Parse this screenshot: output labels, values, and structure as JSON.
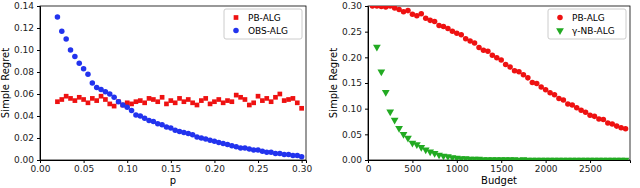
{
  "chart_data": [
    {
      "type": "scatter",
      "x_label": "p",
      "y_label": "Simple Regret",
      "legend": "upper right",
      "xlim": [
        0,
        0.305
      ],
      "ylim": [
        0,
        0.14
      ],
      "xticks": [
        {
          "value": 0,
          "label": "0.00"
        },
        {
          "value": 0.05,
          "label": "0.05"
        },
        {
          "value": 0.1,
          "label": "0.10"
        },
        {
          "value": 0.15,
          "label": "0.15"
        },
        {
          "value": 0.2,
          "label": "0.20"
        },
        {
          "value": 0.25,
          "label": "0.25"
        },
        {
          "value": 0.3,
          "label": "0.30"
        }
      ],
      "yticks": [
        {
          "value": 0,
          "label": "0.00"
        },
        {
          "value": 0.02,
          "label": "0.02"
        },
        {
          "value": 0.04,
          "label": "0.04"
        },
        {
          "value": 0.06,
          "label": "0.06"
        },
        {
          "value": 0.08,
          "label": "0.08"
        },
        {
          "value": 0.1,
          "label": "0.10"
        },
        {
          "value": 0.12,
          "label": "0.12"
        },
        {
          "value": 0.14,
          "label": "0.14"
        }
      ],
      "series": [
        {
          "name": "PB-ALG",
          "color": "#ee1111",
          "marker": "square",
          "x": [
            0.02,
            0.025,
            0.03,
            0.035,
            0.04,
            0.045,
            0.05,
            0.055,
            0.06,
            0.065,
            0.07,
            0.075,
            0.08,
            0.085,
            0.09,
            0.095,
            0.1,
            0.105,
            0.11,
            0.115,
            0.12,
            0.125,
            0.13,
            0.135,
            0.14,
            0.145,
            0.15,
            0.155,
            0.16,
            0.165,
            0.17,
            0.175,
            0.18,
            0.185,
            0.19,
            0.195,
            0.2,
            0.205,
            0.21,
            0.215,
            0.22,
            0.225,
            0.23,
            0.235,
            0.24,
            0.245,
            0.25,
            0.255,
            0.26,
            0.265,
            0.27,
            0.275,
            0.28,
            0.285,
            0.29,
            0.295,
            0.3
          ],
          "values": [
            0.053,
            0.055,
            0.058,
            0.056,
            0.054,
            0.057,
            0.055,
            0.052,
            0.056,
            0.054,
            0.058,
            0.055,
            0.051,
            0.049,
            0.053,
            0.05,
            0.052,
            0.051,
            0.053,
            0.054,
            0.052,
            0.056,
            0.055,
            0.053,
            0.057,
            0.051,
            0.054,
            0.052,
            0.056,
            0.053,
            0.055,
            0.052,
            0.05,
            0.054,
            0.056,
            0.051,
            0.053,
            0.055,
            0.052,
            0.054,
            0.053,
            0.059,
            0.057,
            0.055,
            0.05,
            0.052,
            0.058,
            0.054,
            0.056,
            0.053,
            0.057,
            0.06,
            0.054,
            0.055,
            0.056,
            0.052,
            0.047
          ]
        },
        {
          "name": "OBS-ALG",
          "color": "#2233ee",
          "marker": "circle",
          "x": [
            0.02,
            0.025,
            0.03,
            0.035,
            0.04,
            0.045,
            0.05,
            0.055,
            0.06,
            0.065,
            0.07,
            0.075,
            0.08,
            0.085,
            0.09,
            0.095,
            0.1,
            0.105,
            0.11,
            0.115,
            0.12,
            0.125,
            0.13,
            0.135,
            0.14,
            0.145,
            0.15,
            0.155,
            0.16,
            0.165,
            0.17,
            0.175,
            0.18,
            0.185,
            0.19,
            0.195,
            0.2,
            0.205,
            0.21,
            0.215,
            0.22,
            0.225,
            0.23,
            0.235,
            0.24,
            0.245,
            0.25,
            0.255,
            0.26,
            0.265,
            0.27,
            0.275,
            0.28,
            0.285,
            0.29,
            0.295,
            0.3
          ],
          "values": [
            0.13,
            0.117,
            0.11,
            0.1,
            0.094,
            0.088,
            0.083,
            0.078,
            0.07,
            0.066,
            0.064,
            0.062,
            0.06,
            0.057,
            0.053,
            0.05,
            0.048,
            0.045,
            0.041,
            0.04,
            0.038,
            0.036,
            0.035,
            0.033,
            0.032,
            0.03,
            0.029,
            0.027,
            0.026,
            0.025,
            0.024,
            0.023,
            0.021,
            0.02,
            0.019,
            0.018,
            0.017,
            0.016,
            0.015,
            0.014,
            0.013,
            0.012,
            0.011,
            0.011,
            0.01,
            0.009,
            0.009,
            0.008,
            0.007,
            0.007,
            0.006,
            0.006,
            0.005,
            0.005,
            0.004,
            0.004,
            0.003
          ]
        }
      ]
    },
    {
      "type": "scatter",
      "x_label": "Budget",
      "y_label": "Simple Regret",
      "legend": "upper right",
      "xlim": [
        0,
        2950
      ],
      "ylim": [
        0,
        0.3
      ],
      "xticks": [
        0,
        500,
        1000,
        1500,
        2000,
        2500
      ],
      "yticks": [
        {
          "value": 0,
          "label": "0.00"
        },
        {
          "value": 0.05,
          "label": "0.05"
        },
        {
          "value": 0.1,
          "label": "0.10"
        },
        {
          "value": 0.15,
          "label": "0.15"
        },
        {
          "value": 0.2,
          "label": "0.20"
        },
        {
          "value": 0.25,
          "label": "0.25"
        },
        {
          "value": 0.3,
          "label": "0.30"
        }
      ],
      "series": [
        {
          "name": "PB-ALG",
          "color": "#ee1111",
          "marker": "circle",
          "x": [
            50,
            100,
            150,
            200,
            250,
            300,
            350,
            400,
            450,
            500,
            550,
            600,
            650,
            700,
            750,
            800,
            850,
            900,
            950,
            1000,
            1050,
            1100,
            1150,
            1200,
            1250,
            1300,
            1350,
            1400,
            1450,
            1500,
            1550,
            1600,
            1650,
            1700,
            1750,
            1800,
            1850,
            1900,
            1950,
            2000,
            2050,
            2100,
            2150,
            2200,
            2250,
            2300,
            2350,
            2400,
            2450,
            2500,
            2550,
            2600,
            2650,
            2700,
            2750,
            2800,
            2850,
            2900
          ],
          "values": [
            0.3,
            0.3,
            0.299,
            0.298,
            0.3,
            0.296,
            0.293,
            0.289,
            0.291,
            0.284,
            0.281,
            0.285,
            0.276,
            0.272,
            0.27,
            0.262,
            0.26,
            0.256,
            0.251,
            0.247,
            0.244,
            0.236,
            0.232,
            0.228,
            0.219,
            0.214,
            0.212,
            0.204,
            0.199,
            0.195,
            0.186,
            0.181,
            0.174,
            0.172,
            0.166,
            0.16,
            0.151,
            0.149,
            0.142,
            0.137,
            0.131,
            0.127,
            0.12,
            0.117,
            0.109,
            0.107,
            0.102,
            0.097,
            0.093,
            0.087,
            0.085,
            0.08,
            0.079,
            0.072,
            0.07,
            0.066,
            0.063,
            0.061
          ]
        },
        {
          "name": "γ-NB-ALG",
          "color": "#22aa22",
          "marker": "triangle-down",
          "x": [
            100,
            150,
            200,
            250,
            300,
            350,
            400,
            450,
            500,
            550,
            600,
            650,
            700,
            750,
            800,
            850,
            900,
            950,
            1000,
            1050,
            1100,
            1150,
            1200,
            1250,
            1300,
            1350,
            1400,
            1450,
            1500,
            1550,
            1600,
            1650,
            1700,
            1750,
            1800,
            1850,
            1900,
            1950,
            2000,
            2050,
            2100,
            2150,
            2200,
            2250,
            2300,
            2350,
            2400,
            2450,
            2500,
            2550,
            2600,
            2650,
            2700,
            2750,
            2800,
            2850,
            2900
          ],
          "values": [
            0.22,
            0.172,
            0.132,
            0.094,
            0.078,
            0.062,
            0.05,
            0.043,
            0.033,
            0.03,
            0.025,
            0.02,
            0.016,
            0.013,
            0.01,
            0.008,
            0.007,
            0.005,
            0.004,
            0.003,
            0.003,
            0.002,
            0.002,
            0.002,
            0.001,
            0.001,
            0.001,
            0.001,
            0.001,
            0.001,
            0.001,
            0.001,
            0,
            0.001,
            0,
            0,
            0,
            0,
            0,
            0,
            0,
            0,
            0,
            0,
            0,
            0,
            0,
            0,
            0,
            0,
            0,
            0,
            0,
            0,
            0,
            0,
            0
          ]
        }
      ]
    }
  ]
}
